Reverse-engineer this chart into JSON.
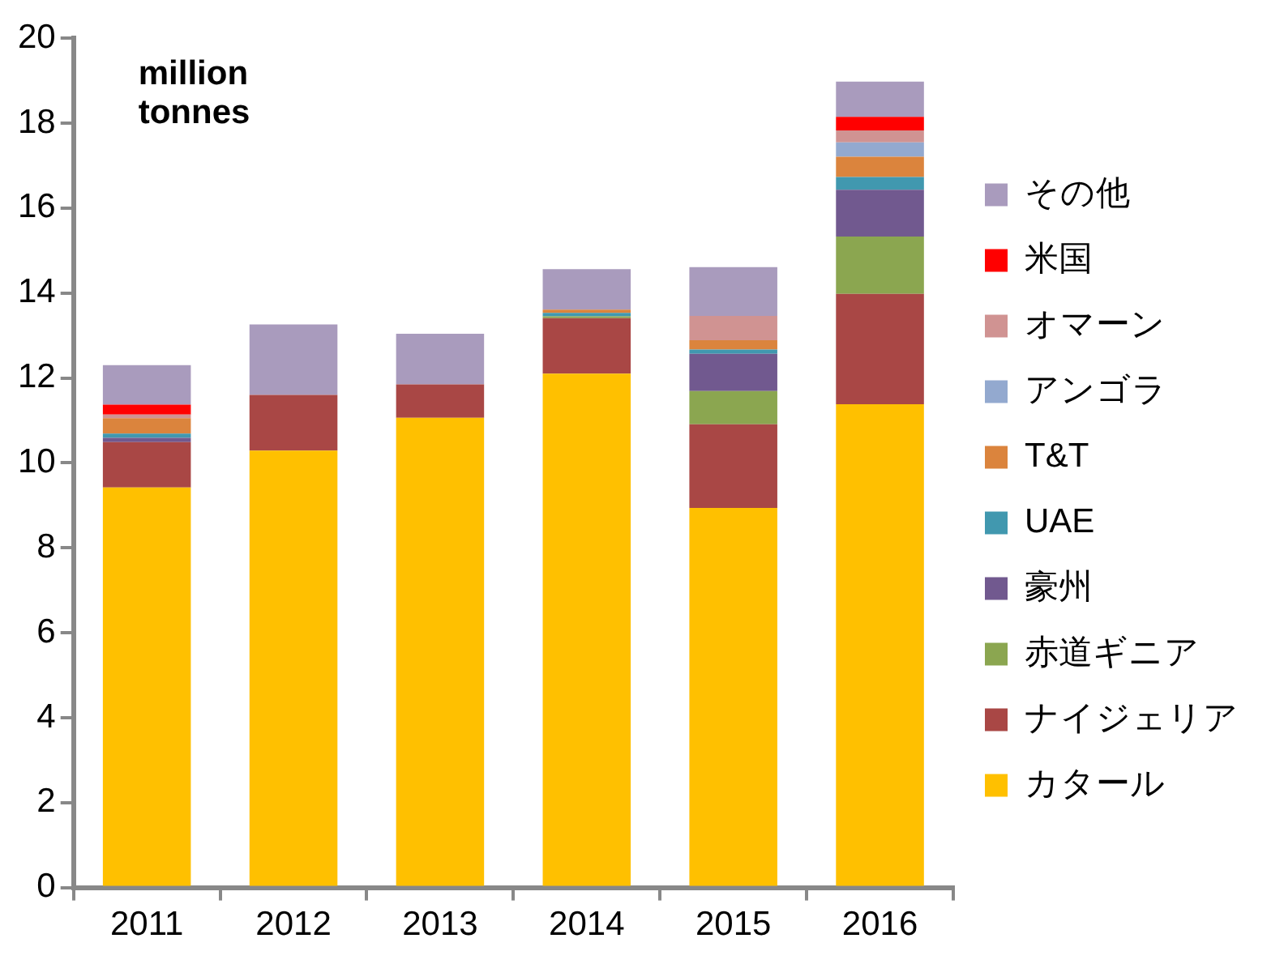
{
  "chart_data": {
    "type": "bar",
    "stacked": true,
    "ylabel": "million\ntonnes",
    "categories": [
      "2011",
      "2012",
      "2013",
      "2014",
      "2015",
      "2016"
    ],
    "ylim": [
      0,
      20
    ],
    "yticks": [
      0,
      2,
      4,
      6,
      8,
      10,
      12,
      14,
      16,
      18,
      20
    ],
    "grid": false,
    "legend": "right",
    "series": [
      {
        "name": "カタール",
        "color": "#ffc000",
        "values": [
          9.42,
          10.29,
          11.06,
          12.1,
          8.94,
          11.38
        ]
      },
      {
        "name": "ナイジェリア",
        "color": "#a94745",
        "values": [
          1.07,
          1.31,
          0.79,
          1.31,
          1.97,
          2.6
        ]
      },
      {
        "name": "赤道ギニア",
        "color": "#8ba650",
        "values": [
          null,
          null,
          null,
          0.04,
          0.78,
          1.35
        ]
      },
      {
        "name": "豪州",
        "color": "#71598f",
        "values": [
          0.1,
          null,
          null,
          null,
          0.88,
          1.1
        ]
      },
      {
        "name": "UAE",
        "color": "#4198af",
        "values": [
          0.1,
          null,
          null,
          0.08,
          0.1,
          0.3
        ]
      },
      {
        "name": "T&T",
        "color": "#db843d",
        "values": [
          0.36,
          null,
          null,
          0.08,
          0.22,
          0.48
        ]
      },
      {
        "name": "アンゴラ",
        "color": "#93a9cf",
        "values": [
          null,
          null,
          null,
          null,
          null,
          0.34
        ]
      },
      {
        "name": "オマーン",
        "color": "#d09392",
        "values": [
          0.09,
          null,
          null,
          null,
          0.57,
          0.28
        ]
      },
      {
        "name": "米国",
        "color": "#ff0000",
        "values": [
          0.23,
          null,
          null,
          null,
          null,
          0.32
        ]
      },
      {
        "name": "その他",
        "color": "#a99bbd",
        "values": [
          0.93,
          1.66,
          1.19,
          0.95,
          1.15,
          0.83
        ]
      }
    ]
  }
}
